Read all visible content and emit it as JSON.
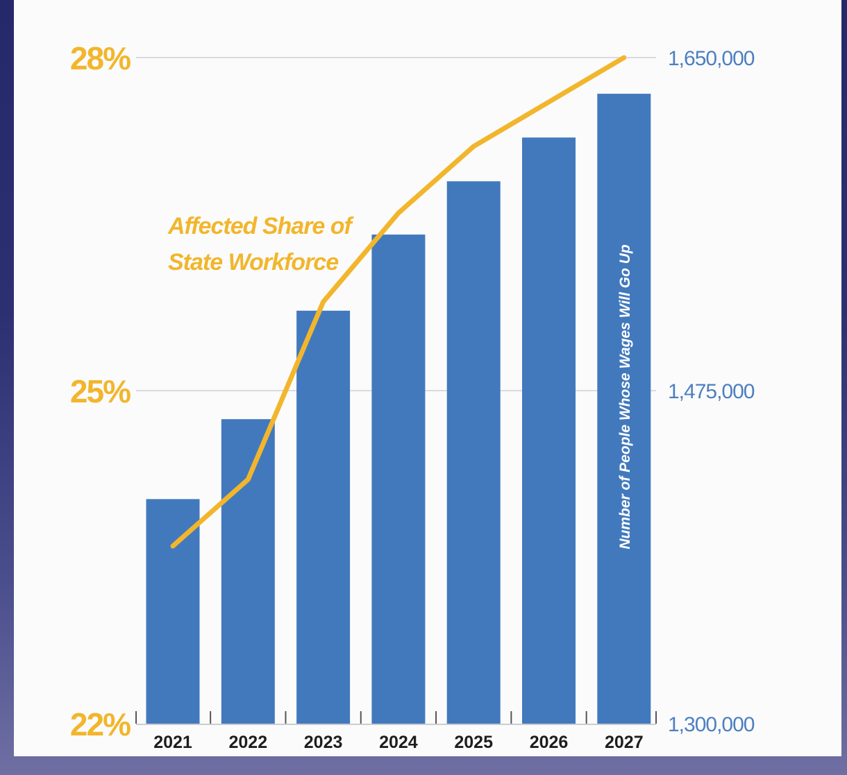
{
  "chart_data": {
    "type": "bar",
    "categories": [
      "2021",
      "2022",
      "2023",
      "2024",
      "2025",
      "2026",
      "2027"
    ],
    "series": [
      {
        "name": "Number of People Whose Wages Will Go Up",
        "type": "bar",
        "axis": "right",
        "color": "#4279bd",
        "values": [
          1418000,
          1460000,
          1517000,
          1557000,
          1585000,
          1608000,
          1631000
        ]
      },
      {
        "name": "Affected Share of State Workforce",
        "type": "line",
        "axis": "left",
        "color": "#f2b62c",
        "values": [
          23.6,
          24.2,
          25.8,
          26.6,
          27.2,
          27.6,
          28.0
        ]
      }
    ],
    "y_left": {
      "ticks": [
        "22%",
        "25%",
        "28%"
      ],
      "values": [
        22,
        25,
        28
      ],
      "ylim": [
        22,
        28
      ],
      "color": "#f2b62c"
    },
    "y_right": {
      "ticks": [
        "1,300,000",
        "1,475,000",
        "1,650,000"
      ],
      "values": [
        1300000,
        1475000,
        1650000
      ],
      "ylim": [
        1300000,
        1650000
      ],
      "color": "#4d7fc0",
      "label": "Number of People Whose Wages Will Go Up"
    },
    "line_label": [
      "Affected Share of",
      "State Workforce"
    ],
    "grid": true,
    "legend": "none"
  }
}
